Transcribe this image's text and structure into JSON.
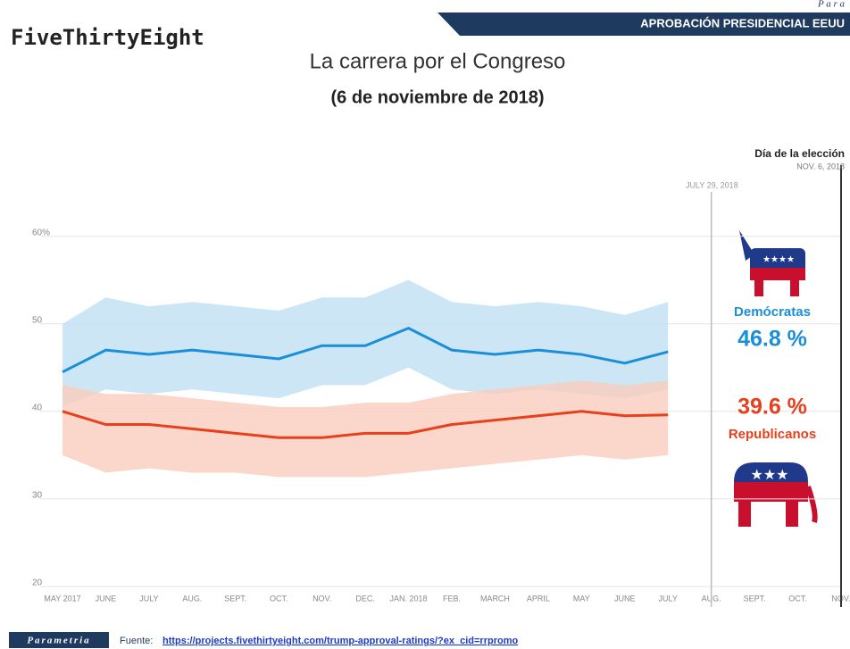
{
  "header": {
    "brand": "FiveThirtyEight",
    "banner": "APROBACIÓN PRESIDENCIAL EEUU",
    "corner": "P a r a"
  },
  "chart_data": {
    "type": "line",
    "title": "La carrera por el Congreso",
    "subtitle": "(6 de noviembre de 2018)",
    "categories": [
      "MAY 2017",
      "JUNE",
      "JULY",
      "AUG.",
      "SEPT.",
      "OCT.",
      "NOV.",
      "DEC.",
      "JAN. 2018",
      "FEB.",
      "MARCH",
      "APRIL",
      "MAY",
      "JUNE",
      "JULY",
      "AUG.",
      "SEPT.",
      "OCT.",
      "NOV."
    ],
    "series": [
      {
        "name": "Demócratas",
        "color": "#1a8fd8",
        "band_color": "#bfe0f4",
        "current_label": "46.8 %",
        "values": [
          44.5,
          47,
          46.5,
          47,
          46.5,
          46,
          47.5,
          47.5,
          49.5,
          47,
          46.5,
          47,
          46.5,
          45.5,
          46.8,
          null,
          null,
          null,
          null
        ],
        "band_low": [
          40.5,
          42.5,
          42,
          42.5,
          42,
          41.5,
          43,
          43,
          45,
          42.5,
          42,
          42.5,
          42,
          41.5,
          42.5,
          null,
          null,
          null,
          null
        ],
        "band_high": [
          50,
          53,
          52,
          52.5,
          52,
          51.5,
          53,
          53,
          55,
          52.5,
          52,
          52.5,
          52,
          51,
          52.5,
          null,
          null,
          null,
          null
        ]
      },
      {
        "name": "Republicanos",
        "color": "#e8401c",
        "band_color": "#f9cdbd",
        "current_label": "39.6 %",
        "values": [
          40,
          38.5,
          38.5,
          38,
          37.5,
          37,
          37,
          37.5,
          37.5,
          38.5,
          39,
          39.5,
          40,
          39.5,
          39.6,
          null,
          null,
          null,
          null
        ],
        "band_low": [
          35,
          33,
          33.5,
          33,
          33,
          32.5,
          32.5,
          32.5,
          33,
          33.5,
          34,
          34.5,
          35,
          34.5,
          35,
          null,
          null,
          null,
          null
        ],
        "band_high": [
          43,
          42,
          42,
          41.5,
          41,
          40.5,
          40.5,
          41,
          41,
          42,
          42.5,
          43,
          43.5,
          43,
          43.5,
          null,
          null,
          null,
          null
        ]
      }
    ],
    "ylim": [
      20,
      62
    ],
    "yticks": [
      20,
      30,
      40,
      50,
      {
        "value": 60,
        "label": "60%"
      }
    ],
    "grid": true,
    "annotations": [
      {
        "text": "JULY 29, 2018",
        "category": 15
      },
      {
        "text": "Día de la elección",
        "date": "NOV. 6, 2018",
        "category": 18
      }
    ]
  },
  "footer": {
    "brand": "Parametria",
    "source_label": "Fuente:",
    "url": "https://projects.fivethirtyeight.com/trump-approval-ratings/?ex_cid=rrpromo"
  }
}
